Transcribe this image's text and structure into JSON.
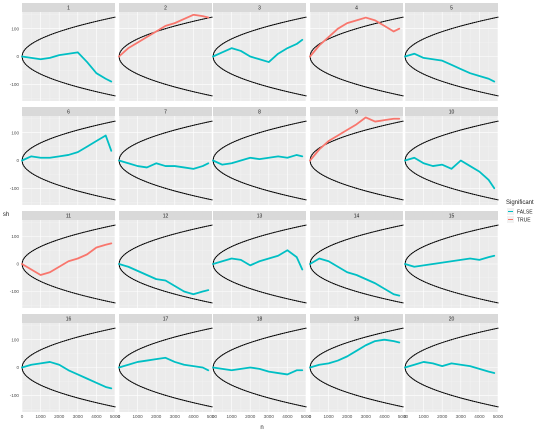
{
  "chart_data": {
    "type": "line",
    "xlabel": "n",
    "ylabel": "sh",
    "xlim": [
      0,
      5000
    ],
    "ylim": [
      -160,
      160
    ],
    "x_ticks": [
      "0",
      "1000",
      "2000",
      "3000",
      "4000",
      "5000"
    ],
    "y_ticks": [
      "100",
      "0",
      "-100"
    ],
    "boundary": {
      "k": 2,
      "style": "dotted black",
      "note": "y = ±2*sqrt(n)"
    },
    "legend": {
      "title": "Significant",
      "position": "right",
      "items": [
        {
          "label": "FALSE",
          "color": "#00BFC4"
        },
        {
          "label": "TRUE",
          "color": "#F8766D"
        }
      ]
    },
    "panels": [
      {
        "label": "1",
        "significant": false,
        "x": [
          0,
          500,
          1000,
          1500,
          2000,
          2500,
          3000,
          3500,
          4000,
          4500,
          4800
        ],
        "y": [
          0,
          -5,
          -10,
          -5,
          5,
          10,
          15,
          -20,
          -60,
          -80,
          -90
        ]
      },
      {
        "label": "2",
        "significant": true,
        "x": [
          0,
          500,
          1000,
          1500,
          2000,
          2500,
          3000,
          3500,
          4000,
          4500,
          4800
        ],
        "y": [
          0,
          30,
          50,
          70,
          90,
          110,
          120,
          135,
          150,
          145,
          140
        ]
      },
      {
        "label": "3",
        "significant": false,
        "x": [
          0,
          500,
          1000,
          1500,
          2000,
          2500,
          3000,
          3500,
          4000,
          4500,
          4800
        ],
        "y": [
          0,
          15,
          30,
          20,
          0,
          -10,
          -20,
          10,
          30,
          45,
          60
        ]
      },
      {
        "label": "4",
        "significant": true,
        "x": [
          0,
          500,
          1000,
          1500,
          2000,
          2500,
          3000,
          3500,
          4000,
          4500,
          4800
        ],
        "y": [
          0,
          40,
          70,
          100,
          120,
          130,
          140,
          130,
          110,
          90,
          100
        ]
      },
      {
        "label": "5",
        "significant": false,
        "x": [
          0,
          500,
          1000,
          1500,
          2000,
          2500,
          3000,
          3500,
          4000,
          4500,
          4800
        ],
        "y": [
          0,
          10,
          -5,
          -10,
          -15,
          -30,
          -45,
          -60,
          -70,
          -80,
          -90
        ]
      },
      {
        "label": "6",
        "significant": false,
        "x": [
          0,
          500,
          1000,
          1500,
          2000,
          2500,
          3000,
          3500,
          4000,
          4500,
          4800
        ],
        "y": [
          0,
          15,
          10,
          10,
          15,
          20,
          30,
          50,
          70,
          90,
          35
        ]
      },
      {
        "label": "7",
        "significant": false,
        "x": [
          0,
          500,
          1000,
          1500,
          2000,
          2500,
          3000,
          3500,
          4000,
          4500,
          4800
        ],
        "y": [
          0,
          -10,
          -20,
          -25,
          -10,
          -20,
          -20,
          -25,
          -30,
          -20,
          -10
        ]
      },
      {
        "label": "8",
        "significant": false,
        "x": [
          0,
          500,
          1000,
          1500,
          2000,
          2500,
          3000,
          3500,
          4000,
          4500,
          4800
        ],
        "y": [
          0,
          -15,
          -10,
          0,
          10,
          5,
          10,
          15,
          10,
          20,
          15
        ]
      },
      {
        "label": "9",
        "significant": true,
        "x": [
          0,
          500,
          1000,
          1500,
          2000,
          2500,
          3000,
          3500,
          4000,
          4500,
          4800
        ],
        "y": [
          0,
          40,
          70,
          90,
          110,
          130,
          155,
          140,
          145,
          150,
          150
        ]
      },
      {
        "label": "10",
        "significant": false,
        "x": [
          0,
          500,
          1000,
          1500,
          2000,
          2500,
          3000,
          3500,
          4000,
          4500,
          4800
        ],
        "y": [
          0,
          10,
          -10,
          -20,
          -15,
          -30,
          0,
          -20,
          -40,
          -70,
          -100
        ]
      },
      {
        "label": "11",
        "significant": true,
        "x": [
          0,
          500,
          1000,
          1500,
          2000,
          2500,
          3000,
          3500,
          4000,
          4500,
          4800
        ],
        "y": [
          0,
          -20,
          -40,
          -30,
          -10,
          10,
          20,
          35,
          60,
          70,
          75
        ]
      },
      {
        "label": "12",
        "significant": false,
        "x": [
          0,
          500,
          1000,
          1500,
          2000,
          2500,
          3000,
          3500,
          4000,
          4500,
          4800
        ],
        "y": [
          0,
          -10,
          -25,
          -40,
          -55,
          -60,
          -80,
          -100,
          -110,
          -100,
          -95
        ]
      },
      {
        "label": "13",
        "significant": false,
        "x": [
          0,
          500,
          1000,
          1500,
          2000,
          2500,
          3000,
          3500,
          4000,
          4500,
          4800
        ],
        "y": [
          0,
          10,
          20,
          15,
          -5,
          10,
          20,
          30,
          50,
          25,
          -20
        ]
      },
      {
        "label": "14",
        "significant": false,
        "x": [
          0,
          500,
          1000,
          1500,
          2000,
          2500,
          3000,
          3500,
          4000,
          4500,
          4800
        ],
        "y": [
          0,
          20,
          10,
          -10,
          -30,
          -40,
          -55,
          -70,
          -90,
          -110,
          -115
        ]
      },
      {
        "label": "15",
        "significant": false,
        "x": [
          0,
          500,
          1000,
          1500,
          2000,
          2500,
          3000,
          3500,
          4000,
          4500,
          4800
        ],
        "y": [
          0,
          -10,
          -5,
          0,
          5,
          10,
          15,
          20,
          15,
          25,
          30
        ]
      },
      {
        "label": "16",
        "significant": false,
        "x": [
          0,
          500,
          1000,
          1500,
          2000,
          2500,
          3000,
          3500,
          4000,
          4500,
          4800
        ],
        "y": [
          0,
          10,
          15,
          20,
          10,
          -10,
          -25,
          -40,
          -55,
          -70,
          -75
        ]
      },
      {
        "label": "17",
        "significant": false,
        "x": [
          0,
          500,
          1000,
          1500,
          2000,
          2500,
          3000,
          3500,
          4000,
          4500,
          4800
        ],
        "y": [
          0,
          10,
          20,
          25,
          30,
          35,
          20,
          10,
          5,
          0,
          -10
        ]
      },
      {
        "label": "18",
        "significant": false,
        "x": [
          0,
          500,
          1000,
          1500,
          2000,
          2500,
          3000,
          3500,
          4000,
          4500,
          4800
        ],
        "y": [
          0,
          -5,
          -10,
          -5,
          0,
          -5,
          -15,
          -20,
          -25,
          -10,
          -10
        ]
      },
      {
        "label": "19",
        "significant": false,
        "x": [
          0,
          500,
          1000,
          1500,
          2000,
          2500,
          3000,
          3500,
          4000,
          4500,
          4800
        ],
        "y": [
          0,
          10,
          15,
          25,
          40,
          60,
          80,
          95,
          100,
          95,
          90
        ]
      },
      {
        "label": "20",
        "significant": false,
        "x": [
          0,
          500,
          1000,
          1500,
          2000,
          2500,
          3000,
          3500,
          4000,
          4500,
          4800
        ],
        "y": [
          0,
          10,
          20,
          15,
          5,
          15,
          10,
          5,
          -5,
          -15,
          -20
        ]
      }
    ]
  }
}
